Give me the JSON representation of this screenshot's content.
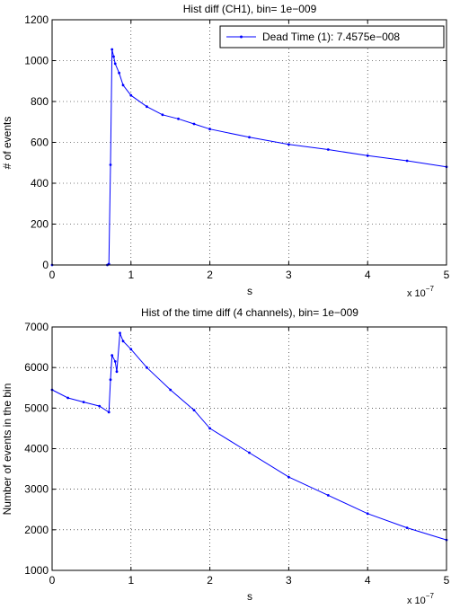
{
  "chart_data": [
    {
      "type": "line",
      "title": "Hist diff (CH1), bin= 1e−009",
      "xlabel": "s",
      "ylabel": "# of events",
      "x_multiplier": "x 10",
      "x_multiplier_exp": "−7",
      "xlim": [
        0,
        5
      ],
      "ylim": [
        0,
        1200
      ],
      "xticks": [
        0,
        1,
        2,
        3,
        4,
        5
      ],
      "xtick_labels": [
        "0",
        "1",
        "2",
        "3",
        "4",
        "5"
      ],
      "yticks": [
        0,
        200,
        400,
        600,
        800,
        1000,
        1200
      ],
      "ytick_labels": [
        "0",
        "200",
        "400",
        "600",
        "800",
        "1000",
        "1200"
      ],
      "grid": true,
      "legend_position": "top-right",
      "line_color": "#0000ff",
      "series": [
        {
          "name": "Dead Time (1): 7.4575e−008",
          "x": [
            0,
            0.7,
            0.72,
            0.74,
            0.76,
            0.78,
            0.8,
            0.85,
            0.9,
            1.0,
            1.2,
            1.4,
            1.6,
            1.8,
            2.0,
            2.5,
            3.0,
            3.5,
            4.0,
            4.5,
            5.0
          ],
          "values": [
            0,
            0,
            5,
            490,
            1055,
            1020,
            985,
            940,
            880,
            830,
            775,
            735,
            715,
            690,
            665,
            625,
            590,
            565,
            535,
            510,
            480
          ]
        }
      ]
    },
    {
      "type": "line",
      "title": "Hist of the time diff (4 channels), bin= 1e−009",
      "xlabel": "s",
      "ylabel": "Number of events in the bin",
      "x_multiplier": "x 10",
      "x_multiplier_exp": "−7",
      "xlim": [
        0,
        5
      ],
      "ylim": [
        1000,
        7000
      ],
      "xticks": [
        0,
        1,
        2,
        3,
        4,
        5
      ],
      "xtick_labels": [
        "0",
        "1",
        "2",
        "3",
        "4",
        "5"
      ],
      "yticks": [
        1000,
        2000,
        3000,
        4000,
        5000,
        6000,
        7000
      ],
      "ytick_labels": [
        "1000",
        "2000",
        "3000",
        "4000",
        "5000",
        "6000",
        "7000"
      ],
      "grid": true,
      "line_color": "#0000ff",
      "series": [
        {
          "x": [
            0,
            0.2,
            0.4,
            0.6,
            0.72,
            0.74,
            0.76,
            0.8,
            0.82,
            0.86,
            0.9,
            1.0,
            1.2,
            1.5,
            1.8,
            2.0,
            2.5,
            3.0,
            3.5,
            4.0,
            4.5,
            5.0
          ],
          "values": [
            5450,
            5250,
            5150,
            5050,
            4900,
            5700,
            6300,
            6150,
            5900,
            6850,
            6650,
            6450,
            6000,
            5450,
            4950,
            4500,
            3900,
            3300,
            2850,
            2400,
            2050,
            1750
          ]
        }
      ]
    }
  ]
}
